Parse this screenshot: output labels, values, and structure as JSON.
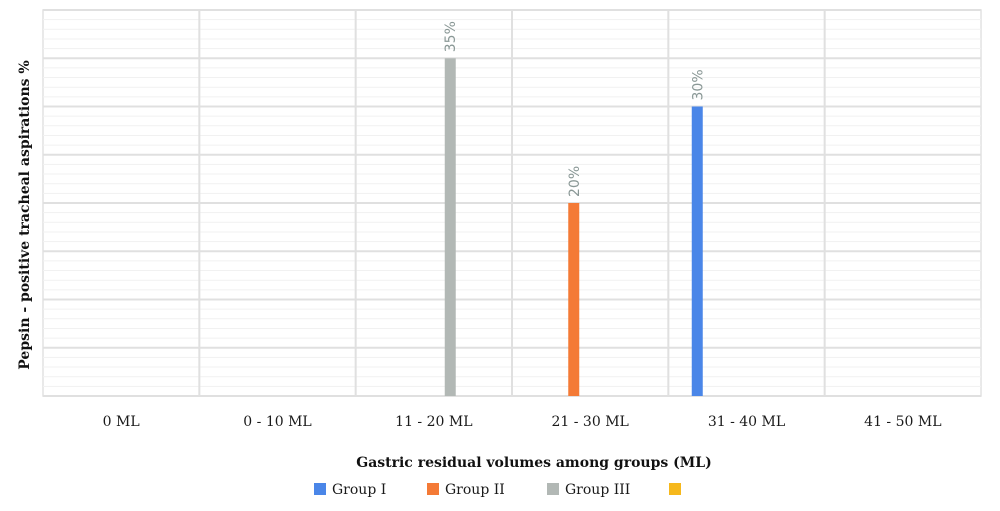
{
  "chart_data": {
    "type": "bar",
    "title": "",
    "xlabel": "Gastric residual volumes among groups (ML)",
    "ylabel": "Pepsin - positive tracheal aspirations %",
    "categories": [
      "0 ML",
      "0 - 10 ML",
      "11 - 20 ML",
      "21 - 30 ML",
      "31 - 40 ML",
      "41 - 50 ML"
    ],
    "series": [
      {
        "name": "Group I",
        "color": "#4a86e8",
        "values": [
          0,
          0,
          0,
          0,
          30,
          0
        ]
      },
      {
        "name": "Group II",
        "color": "#f47a36",
        "values": [
          0,
          0,
          0,
          20,
          0,
          0
        ]
      },
      {
        "name": "Group III",
        "color": "#b2b8b5",
        "values": [
          0,
          0,
          35,
          0,
          0,
          0
        ]
      },
      {
        "name": "",
        "color": "#f6b81c",
        "values": [
          0,
          0,
          0,
          0,
          0,
          0
        ]
      }
    ],
    "data_labels": {
      "11 - 20 ML": "35%",
      "21 - 30 ML": "20%",
      "31 - 40 ML": "30%"
    },
    "ylim": [
      0,
      40
    ],
    "grid": true,
    "legend": "bottom"
  }
}
